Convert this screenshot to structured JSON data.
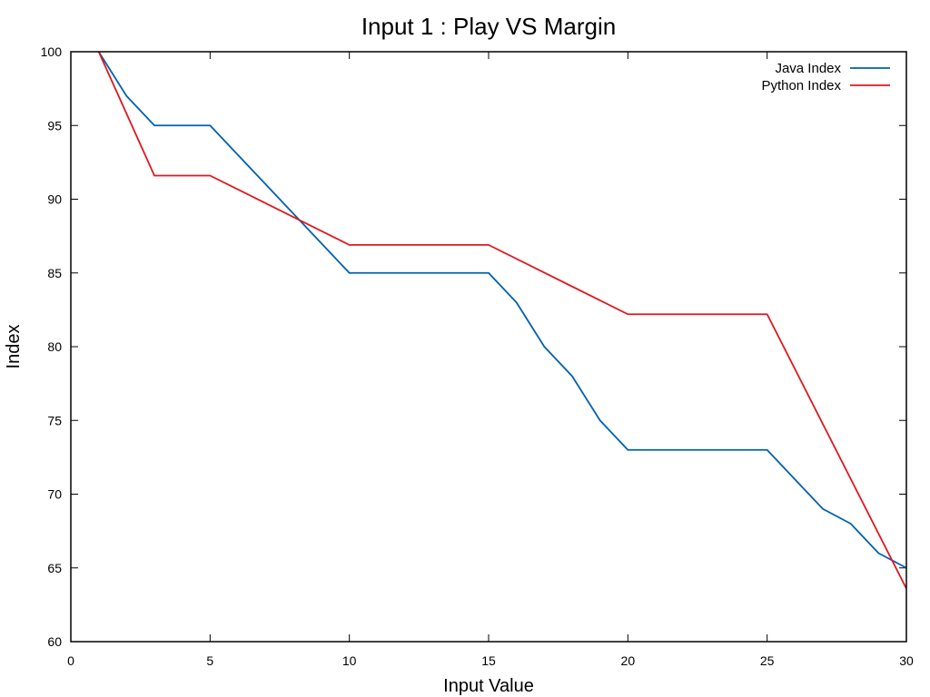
{
  "chart_data": {
    "type": "line",
    "title": "Input 1 : Play VS Margin",
    "xlabel": "Input Value",
    "ylabel": "Index",
    "xlim": [
      0,
      30
    ],
    "ylim": [
      60,
      100
    ],
    "xticks": [
      0,
      5,
      10,
      15,
      20,
      25,
      30
    ],
    "yticks": [
      60,
      65,
      70,
      75,
      80,
      85,
      90,
      95,
      100
    ],
    "grid": false,
    "legend_position": "top-right",
    "series": [
      {
        "name": "Java Index",
        "color": "#0060ad",
        "x": [
          1,
          2,
          3,
          4,
          5,
          6,
          7,
          8,
          9,
          10,
          11,
          12,
          13,
          14,
          15,
          16,
          17,
          18,
          19,
          20,
          21,
          22,
          23,
          24,
          25,
          26,
          27,
          28,
          29,
          30
        ],
        "y": [
          100,
          97,
          95,
          95,
          95,
          93,
          91,
          89,
          87,
          85,
          85,
          85,
          85,
          85,
          85,
          83,
          80,
          78,
          75,
          73,
          73,
          73,
          73,
          73,
          73,
          71,
          69,
          68,
          66,
          65
        ]
      },
      {
        "name": "Python Index",
        "color": "#dd181f",
        "x": [
          1,
          3,
          5,
          10,
          15,
          20,
          25,
          30
        ],
        "y": [
          100,
          91.6,
          91.6,
          86.9,
          86.9,
          82.2,
          82.2,
          63.6
        ]
      }
    ]
  }
}
